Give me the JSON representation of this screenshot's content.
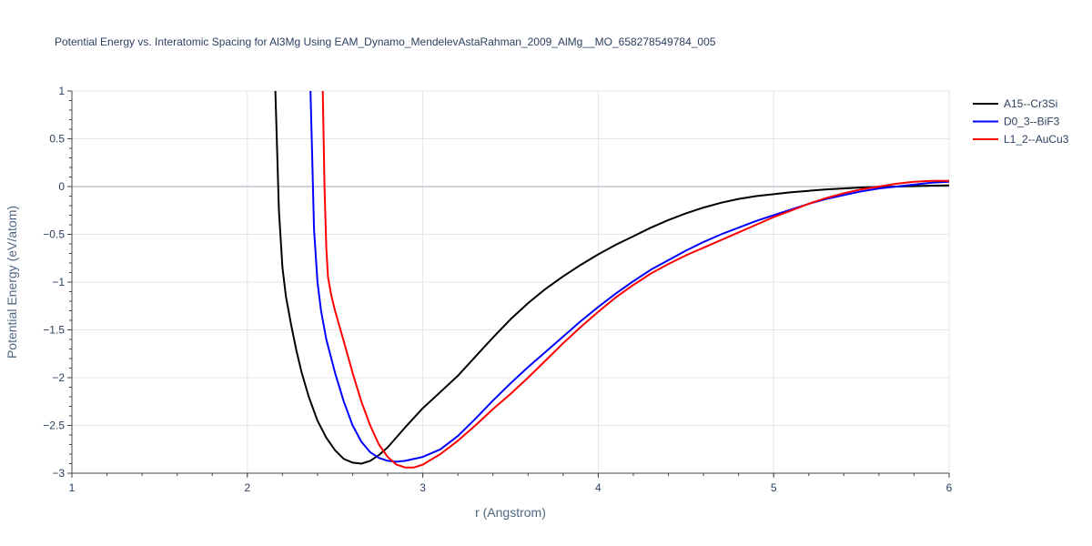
{
  "chart_data": {
    "type": "line",
    "title": "Potential Energy vs. Interatomic Spacing for Al3Mg Using EAM_Dynamo_MendelevAstaRahman_2009_AlMg__MO_658278549784_005",
    "xlabel": "r (Angstrom)",
    "ylabel": "Potential Energy (eV/atom)",
    "xlim": [
      1,
      6
    ],
    "ylim": [
      -3,
      1
    ],
    "xticks": [
      1,
      2,
      3,
      4,
      5,
      6
    ],
    "xtick_labels": [
      "1",
      "2",
      "3",
      "4",
      "5",
      "6"
    ],
    "yticks": [
      1,
      0.5,
      0,
      -0.5,
      -1,
      -1.5,
      -2,
      -2.5,
      -3
    ],
    "ytick_labels": [
      "1",
      "0.5",
      "0",
      "−0.5",
      "−1",
      "−1.5",
      "−2",
      "−2.5",
      "−3"
    ],
    "grid": true,
    "legend_position": "top-right",
    "series": [
      {
        "name": "A15--Cr3Si",
        "color": "#000000",
        "x": [
          2.16,
          2.18,
          2.2,
          2.22,
          2.25,
          2.28,
          2.31,
          2.35,
          2.4,
          2.45,
          2.5,
          2.55,
          2.6,
          2.65,
          2.7,
          2.75,
          2.8,
          2.9,
          3.0,
          3.1,
          3.2,
          3.3,
          3.4,
          3.5,
          3.6,
          3.7,
          3.8,
          3.9,
          4.0,
          4.1,
          4.2,
          4.3,
          4.4,
          4.5,
          4.6,
          4.7,
          4.8,
          4.9,
          5.0,
          5.1,
          5.2,
          5.3,
          5.4,
          5.5,
          5.6,
          5.7,
          5.8,
          5.9,
          6.0
        ],
        "y": [
          1.0,
          -0.25,
          -0.85,
          -1.15,
          -1.45,
          -1.72,
          -1.95,
          -2.2,
          -2.45,
          -2.63,
          -2.76,
          -2.85,
          -2.89,
          -2.9,
          -2.87,
          -2.81,
          -2.73,
          -2.52,
          -2.32,
          -2.15,
          -1.98,
          -1.78,
          -1.58,
          -1.39,
          -1.22,
          -1.07,
          -0.94,
          -0.82,
          -0.71,
          -0.61,
          -0.52,
          -0.43,
          -0.35,
          -0.28,
          -0.22,
          -0.17,
          -0.13,
          -0.1,
          -0.08,
          -0.06,
          -0.045,
          -0.03,
          -0.02,
          -0.01,
          -0.005,
          0.0,
          0.005,
          0.01,
          0.012
        ]
      },
      {
        "name": "D0_3--BiF3",
        "color": "#0000ff",
        "x": [
          2.36,
          2.37,
          2.38,
          2.4,
          2.42,
          2.45,
          2.5,
          2.55,
          2.6,
          2.65,
          2.7,
          2.75,
          2.8,
          2.85,
          2.9,
          3.0,
          3.1,
          3.2,
          3.3,
          3.4,
          3.5,
          3.6,
          3.7,
          3.8,
          3.9,
          4.0,
          4.1,
          4.2,
          4.3,
          4.4,
          4.5,
          4.6,
          4.7,
          4.8,
          4.9,
          5.0,
          5.1,
          5.2,
          5.3,
          5.4,
          5.5,
          5.6,
          5.7,
          5.8,
          5.9,
          6.0
        ],
        "y": [
          1.0,
          0.3,
          -0.45,
          -1.0,
          -1.3,
          -1.6,
          -1.95,
          -2.25,
          -2.5,
          -2.67,
          -2.78,
          -2.84,
          -2.87,
          -2.88,
          -2.87,
          -2.83,
          -2.75,
          -2.61,
          -2.43,
          -2.24,
          -2.06,
          -1.89,
          -1.73,
          -1.57,
          -1.41,
          -1.26,
          -1.12,
          -0.99,
          -0.87,
          -0.77,
          -0.67,
          -0.58,
          -0.5,
          -0.43,
          -0.36,
          -0.3,
          -0.24,
          -0.18,
          -0.13,
          -0.09,
          -0.05,
          -0.02,
          0.0,
          0.02,
          0.04,
          0.05
        ]
      },
      {
        "name": "L1_2--AuCu3",
        "color": "#ff0000",
        "x": [
          2.43,
          2.44,
          2.45,
          2.46,
          2.48,
          2.5,
          2.55,
          2.6,
          2.65,
          2.7,
          2.75,
          2.8,
          2.85,
          2.9,
          2.95,
          3.0,
          3.1,
          3.2,
          3.3,
          3.4,
          3.5,
          3.6,
          3.7,
          3.8,
          3.9,
          4.0,
          4.1,
          4.2,
          4.3,
          4.4,
          4.5,
          4.6,
          4.7,
          4.8,
          4.9,
          5.0,
          5.1,
          5.2,
          5.3,
          5.4,
          5.5,
          5.6,
          5.7,
          5.8,
          5.9,
          6.0
        ],
        "y": [
          1.0,
          0.0,
          -0.65,
          -0.95,
          -1.15,
          -1.3,
          -1.62,
          -1.95,
          -2.25,
          -2.5,
          -2.7,
          -2.83,
          -2.91,
          -2.94,
          -2.94,
          -2.91,
          -2.8,
          -2.66,
          -2.5,
          -2.33,
          -2.17,
          -2.0,
          -1.82,
          -1.64,
          -1.47,
          -1.31,
          -1.16,
          -1.03,
          -0.91,
          -0.81,
          -0.72,
          -0.64,
          -0.56,
          -0.48,
          -0.4,
          -0.32,
          -0.25,
          -0.18,
          -0.12,
          -0.07,
          -0.03,
          0.0,
          0.03,
          0.05,
          0.06,
          0.06
        ]
      }
    ]
  }
}
